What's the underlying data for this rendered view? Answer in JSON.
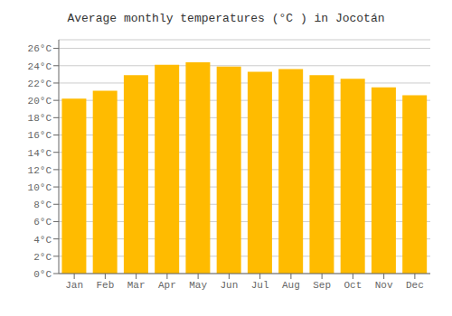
{
  "chart_data": {
    "type": "bar",
    "title": "Average monthly temperatures (°C ) in Jocotán",
    "categories": [
      "Jan",
      "Feb",
      "Mar",
      "Apr",
      "May",
      "Jun",
      "Jul",
      "Aug",
      "Sep",
      "Oct",
      "Nov",
      "Dec"
    ],
    "values": [
      20.2,
      21.1,
      22.9,
      24.1,
      24.4,
      23.9,
      23.3,
      23.6,
      22.9,
      22.5,
      21.5,
      20.6
    ],
    "color": "#FFBB00",
    "ylim": [
      0,
      27
    ],
    "yticks": [
      {
        "value": 0,
        "label": "0°C"
      },
      {
        "value": 2,
        "label": "2°C"
      },
      {
        "value": 4,
        "label": "4°C"
      },
      {
        "value": 6,
        "label": "6°C"
      },
      {
        "value": 8,
        "label": "8°C"
      },
      {
        "value": 10,
        "label": "10°C"
      },
      {
        "value": 12,
        "label": "12°C"
      },
      {
        "value": 14,
        "label": "14°C"
      },
      {
        "value": 16,
        "label": "16°C"
      },
      {
        "value": 18,
        "label": "18°C"
      },
      {
        "value": 20,
        "label": "20°C"
      },
      {
        "value": 22,
        "label": "22°C"
      },
      {
        "value": 24,
        "label": "24°C"
      },
      {
        "value": 26,
        "label": "26°C"
      }
    ],
    "grid": true
  }
}
